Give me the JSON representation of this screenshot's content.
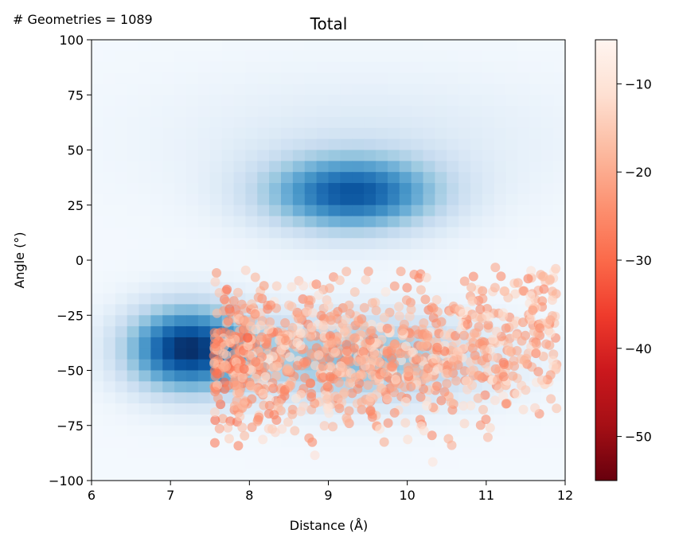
{
  "annotation": "# Geometries = 1089",
  "chart_data": {
    "type": "heatmap",
    "title": "Total",
    "xlabel": "Distance (Å)",
    "ylabel": "Angle (°)",
    "xlim": [
      6,
      12
    ],
    "ylim": [
      -100,
      100
    ],
    "xticks": [
      "6",
      "7",
      "8",
      "9",
      "10",
      "11",
      "12"
    ],
    "yticks": [
      "100",
      "75",
      "50",
      "25",
      "0",
      "−25",
      "−50",
      "−75",
      "−100"
    ],
    "heatmap": {
      "colormap": "Blues",
      "peaks": [
        {
          "x": 7.2,
          "y": -40,
          "amplitude": 1.0
        },
        {
          "x": 9.3,
          "y": 30,
          "amplitude": 0.85
        }
      ]
    },
    "scatter": {
      "colormap": "Reds_r",
      "count": 1089,
      "x_range": [
        7.5,
        12
      ],
      "y_range": [
        -100,
        0
      ],
      "color_range": [
        -55,
        -5
      ]
    },
    "colorbar": {
      "vmin": -55,
      "vmax": -5,
      "ticks": [
        "−10",
        "−20",
        "−30",
        "−40",
        "−50"
      ]
    },
    "colors": {
      "blues_dark": "#08306b",
      "blues_light": "#f7fbff",
      "reds_dark": "#67000d",
      "reds_light": "#fff5f0"
    }
  }
}
